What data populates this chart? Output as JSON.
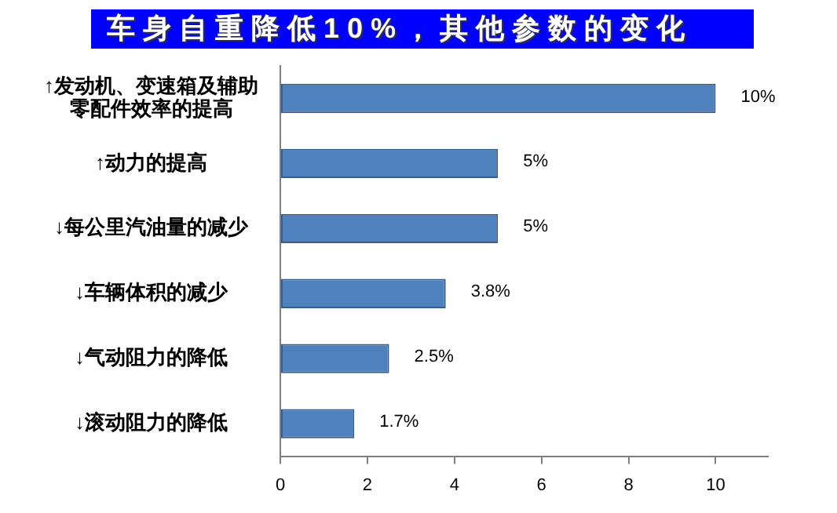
{
  "chart_data": {
    "type": "bar",
    "title": "车身自重降低10%，其他参数的变化",
    "categories": [
      "↑发动机、变速箱及辅助零配件效率的提高",
      "↑动力的提高",
      "↓每公里汽油量的减少",
      "↓车辆体积的减少",
      "↓气动阻力的降低",
      "↓滚动阻力的降低"
    ],
    "values": [
      10,
      5,
      5,
      3.8,
      2.5,
      1.7
    ],
    "value_labels": [
      "10%",
      "5%",
      "5%",
      "3.8%",
      "2.5%",
      "1.7%"
    ],
    "color": "#4f81bd",
    "orientation": "horizontal",
    "xlim": [
      0,
      11.2
    ],
    "xticks": [
      0,
      2,
      4,
      6,
      8,
      10
    ],
    "grid": false
  }
}
